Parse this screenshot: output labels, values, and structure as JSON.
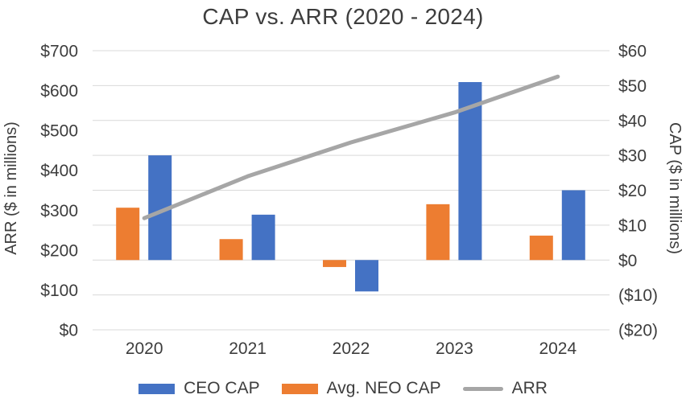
{
  "title": "CAP vs. ARR (2020 - 2024)",
  "colors": {
    "ceo_cap_blue": "#4472C4",
    "neo_cap_orange": "#ED7D31",
    "arr_line_gray": "#A6A6A6",
    "gridline": "#D9D9D9",
    "text": "#3D3D3D"
  },
  "chart_data": {
    "type": "combo-bar-line",
    "title": "CAP vs. ARR (2020 - 2024)",
    "categories": [
      "2020",
      "2021",
      "2022",
      "2023",
      "2024"
    ],
    "series": [
      {
        "name": "CEO CAP",
        "type": "bar",
        "slot": 1,
        "axis": "right",
        "color": "#4472C4",
        "values": [
          30,
          13,
          -9,
          51,
          20
        ]
      },
      {
        "name": "Avg. NEO CAP",
        "type": "bar",
        "slot": 0,
        "axis": "right",
        "color": "#ED7D31",
        "values": [
          15,
          6,
          -2,
          16,
          7
        ]
      },
      {
        "name": "ARR",
        "type": "line",
        "axis": "left",
        "color": "#A6A6A6",
        "values": [
          280,
          385,
          470,
          545,
          635
        ]
      }
    ],
    "left_axis": {
      "title": "ARR ($ in millions)",
      "min": 0,
      "max": 700,
      "step": 100,
      "tick_labels": [
        "$700",
        "$600",
        "$500",
        "$400",
        "$300",
        "$200",
        "$100",
        "$0"
      ]
    },
    "right_axis": {
      "title": "CAP ($ in millions)",
      "min": -20,
      "max": 60,
      "step": 10,
      "tick_labels": [
        "$60",
        "$50",
        "$40",
        "$30",
        "$20",
        "$10",
        "$0",
        "($10)",
        "($20)"
      ]
    },
    "grid": true,
    "legend_position": "bottom"
  },
  "legend": {
    "items": [
      {
        "label": "CEO CAP",
        "swatch": "bar",
        "color": "#4472C4"
      },
      {
        "label": "Avg. NEO CAP",
        "swatch": "bar",
        "color": "#ED7D31"
      },
      {
        "label": "ARR",
        "swatch": "line",
        "color": "#A6A6A6"
      }
    ]
  }
}
